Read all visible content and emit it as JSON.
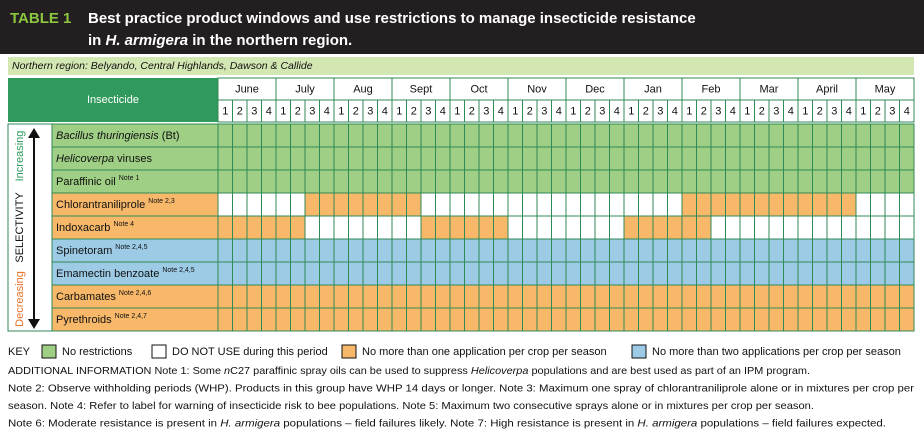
{
  "title": {
    "label": "TABLE 1",
    "line1": "Best practice product windows and use restrictions to manage insecticide resistance",
    "line2": [
      {
        "t": "in ",
        "i": false
      },
      {
        "t": "H. armigera",
        "i": true
      },
      {
        "t": " in the northern region.",
        "i": false
      }
    ]
  },
  "region": "Northern region: Belyando, Central Highlands, Dawson & Callide",
  "table": {
    "column_header": "Insecticide",
    "months": [
      "June",
      "July",
      "Aug",
      "Sept",
      "Oct",
      "Nov",
      "Dec",
      "Jan",
      "Feb",
      "Mar",
      "April",
      "May"
    ],
    "weeks": [
      1,
      2,
      3,
      4
    ],
    "axis": {
      "label": "SELECTIVITY",
      "top": "Increasing",
      "bottom": "Decreasing"
    },
    "rows": [
      {
        "name": [
          {
            "t": "Bacillus thuringiensis",
            "i": true
          },
          {
            "t": " (Bt)",
            "i": false
          }
        ],
        "code": "G",
        "cells": [
          "G",
          "G",
          "G",
          "G",
          "G",
          "G",
          "G",
          "G",
          "G",
          "G",
          "G",
          "G",
          "G",
          "G",
          "G",
          "G",
          "G",
          "G",
          "G",
          "G",
          "G",
          "G",
          "G",
          "G",
          "G",
          "G",
          "G",
          "G",
          "G",
          "G",
          "G",
          "G",
          "G",
          "G",
          "G",
          "G",
          "G",
          "G",
          "G",
          "G",
          "G",
          "G",
          "G",
          "G",
          "G",
          "G",
          "G",
          "G"
        ]
      },
      {
        "name": [
          {
            "t": "Helicoverpa",
            "i": true
          },
          {
            "t": " viruses",
            "i": false
          }
        ],
        "code": "G",
        "cells": [
          "G",
          "G",
          "G",
          "G",
          "G",
          "G",
          "G",
          "G",
          "G",
          "G",
          "G",
          "G",
          "G",
          "G",
          "G",
          "G",
          "G",
          "G",
          "G",
          "G",
          "G",
          "G",
          "G",
          "G",
          "G",
          "G",
          "G",
          "G",
          "G",
          "G",
          "G",
          "G",
          "G",
          "G",
          "G",
          "G",
          "G",
          "G",
          "G",
          "G",
          "G",
          "G",
          "G",
          "G",
          "G",
          "G",
          "G",
          "G"
        ]
      },
      {
        "name": [
          {
            "t": "Paraffinic oil",
            "i": false
          }
        ],
        "note": "Note 1",
        "code": "G",
        "cells": [
          "G",
          "G",
          "G",
          "G",
          "G",
          "G",
          "G",
          "G",
          "G",
          "G",
          "G",
          "G",
          "G",
          "G",
          "G",
          "G",
          "G",
          "G",
          "G",
          "G",
          "G",
          "G",
          "G",
          "G",
          "G",
          "G",
          "G",
          "G",
          "G",
          "G",
          "G",
          "G",
          "G",
          "G",
          "G",
          "G",
          "G",
          "G",
          "G",
          "G",
          "G",
          "G",
          "G",
          "G",
          "G",
          "G",
          "G",
          "G"
        ]
      },
      {
        "name": [
          {
            "t": "Chlorantraniliprole",
            "i": false
          }
        ],
        "note": "Note 2,3",
        "code": "O",
        "cells": [
          "W",
          "W",
          "W",
          "W",
          "W",
          "W",
          "O",
          "O",
          "O",
          "O",
          "O",
          "O",
          "O",
          "O",
          "W",
          "W",
          "W",
          "W",
          "W",
          "W",
          "W",
          "W",
          "W",
          "W",
          "W",
          "W",
          "W",
          "W",
          "W",
          "W",
          "W",
          "W",
          "O",
          "O",
          "O",
          "O",
          "O",
          "O",
          "O",
          "O",
          "O",
          "O",
          "O",
          "O",
          "W",
          "W",
          "W",
          "W"
        ]
      },
      {
        "name": [
          {
            "t": "Indoxacarb",
            "i": false
          }
        ],
        "note": "Note 4",
        "code": "O",
        "cells": [
          "O",
          "O",
          "O",
          "O",
          "O",
          "O",
          "W",
          "W",
          "W",
          "W",
          "W",
          "W",
          "W",
          "W",
          "O",
          "O",
          "O",
          "O",
          "O",
          "O",
          "W",
          "W",
          "W",
          "W",
          "W",
          "W",
          "W",
          "W",
          "O",
          "O",
          "O",
          "O",
          "O",
          "O",
          "W",
          "W",
          "W",
          "W",
          "W",
          "W",
          "W",
          "W",
          "W",
          "W",
          "W",
          "W",
          "W",
          "W"
        ]
      },
      {
        "name": [
          {
            "t": "Spinetoram",
            "i": false
          }
        ],
        "note": "Note 2,4,5",
        "code": "B",
        "cells": [
          "B",
          "B",
          "B",
          "B",
          "B",
          "B",
          "B",
          "B",
          "B",
          "B",
          "B",
          "B",
          "B",
          "B",
          "B",
          "B",
          "B",
          "B",
          "B",
          "B",
          "B",
          "B",
          "B",
          "B",
          "B",
          "B",
          "B",
          "B",
          "B",
          "B",
          "B",
          "B",
          "B",
          "B",
          "B",
          "B",
          "B",
          "B",
          "B",
          "B",
          "B",
          "B",
          "B",
          "B",
          "B",
          "B",
          "B",
          "B"
        ]
      },
      {
        "name": [
          {
            "t": "Emamectin benzoate",
            "i": false
          }
        ],
        "note": "Note 2,4,5",
        "code": "B",
        "cells": [
          "B",
          "B",
          "B",
          "B",
          "B",
          "B",
          "B",
          "B",
          "B",
          "B",
          "B",
          "B",
          "B",
          "B",
          "B",
          "B",
          "B",
          "B",
          "B",
          "B",
          "B",
          "B",
          "B",
          "B",
          "B",
          "B",
          "B",
          "B",
          "B",
          "B",
          "B",
          "B",
          "B",
          "B",
          "B",
          "B",
          "B",
          "B",
          "B",
          "B",
          "B",
          "B",
          "B",
          "B",
          "B",
          "B",
          "B",
          "B"
        ]
      },
      {
        "name": [
          {
            "t": "Carbamates",
            "i": false
          }
        ],
        "note": "Note 2,4,6",
        "code": "O",
        "cells": [
          "O",
          "O",
          "O",
          "O",
          "O",
          "O",
          "O",
          "O",
          "O",
          "O",
          "O",
          "O",
          "O",
          "O",
          "O",
          "O",
          "O",
          "O",
          "O",
          "O",
          "O",
          "O",
          "O",
          "O",
          "O",
          "O",
          "O",
          "O",
          "O",
          "O",
          "O",
          "O",
          "O",
          "O",
          "O",
          "O",
          "O",
          "O",
          "O",
          "O",
          "O",
          "O",
          "O",
          "O",
          "O",
          "O",
          "O",
          "O"
        ]
      },
      {
        "name": [
          {
            "t": "Pyrethroids",
            "i": false
          }
        ],
        "note": "Note 2,4,7",
        "code": "O",
        "cells": [
          "O",
          "O",
          "O",
          "O",
          "O",
          "O",
          "O",
          "O",
          "O",
          "O",
          "O",
          "O",
          "O",
          "O",
          "O",
          "O",
          "O",
          "O",
          "O",
          "O",
          "O",
          "O",
          "O",
          "O",
          "O",
          "O",
          "O",
          "O",
          "O",
          "O",
          "O",
          "O",
          "O",
          "O",
          "O",
          "O",
          "O",
          "O",
          "O",
          "O",
          "O",
          "O",
          "O",
          "O",
          "O",
          "O",
          "O",
          "O"
        ]
      }
    ]
  },
  "key": {
    "label": "KEY",
    "items": [
      {
        "code": "G",
        "color": "#9fcf85",
        "label": "No restrictions"
      },
      {
        "code": "W",
        "color": "#ffffff",
        "label": "DO NOT USE during this period"
      },
      {
        "code": "O",
        "color": "#f8b86a",
        "label": "No more than one application per crop per season"
      },
      {
        "code": "B",
        "color": "#9dcbe6",
        "label": "No more than two applications per crop per season"
      }
    ]
  },
  "notes": [
    [
      {
        "t": "ADDITIONAL INFORMATION  Note 1: Some ",
        "i": false
      },
      {
        "t": "n",
        "i": true
      },
      {
        "t": "C27 paraffinic spray oils can be used to suppress ",
        "i": false
      },
      {
        "t": "Helicoverpa",
        "i": true
      },
      {
        "t": " populations and are best used as part of an IPM program.",
        "i": false
      }
    ],
    [
      {
        "t": "Note 2: Observe withholding periods (WHP). Products in this group have WHP 14 days or longer.  Note 3: Maximum one spray of chlorantraniliprole alone or in mixtures per crop per",
        "i": false
      }
    ],
    [
      {
        "t": "season.  Note 4: Refer to label for warning of insecticide risk to bee populations.  Note 5: Maximum two consecutive sprays alone or in mixtures per crop per season.",
        "i": false
      }
    ],
    [
      {
        "t": "Note 6: Moderate resistance is present in ",
        "i": false
      },
      {
        "t": "H. armigera",
        "i": true
      },
      {
        "t": " populations – field failures likely.  Note 7: High resistance is present in ",
        "i": false
      },
      {
        "t": "H. armigera",
        "i": true
      },
      {
        "t": " populations – field failures expected.",
        "i": false
      }
    ]
  ]
}
